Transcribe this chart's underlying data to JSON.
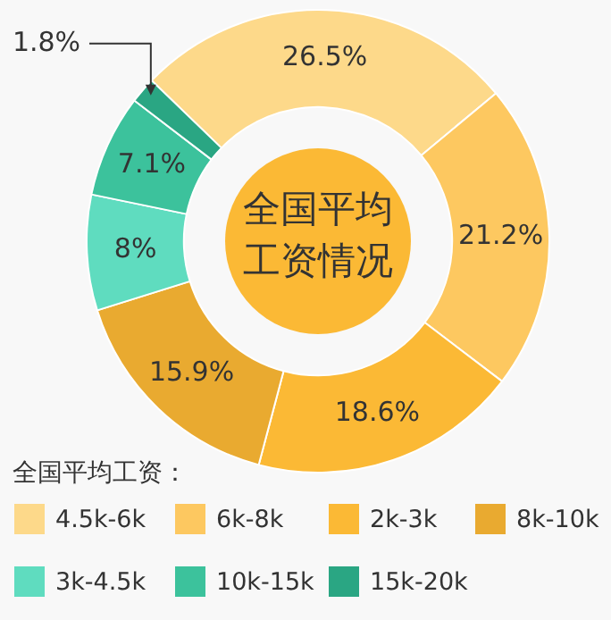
{
  "chart_data": {
    "type": "donut",
    "title": "全国平均工资情况",
    "legend_title": "全国平均工资：",
    "categories": [
      "4.5k-6k",
      "6k-8k",
      "2k-3k",
      "8k-10k",
      "3k-4.5k",
      "10k-15k",
      "15k-20k"
    ],
    "values": [
      26.5,
      21.2,
      18.6,
      15.9,
      8,
      7.1,
      1.8
    ],
    "value_labels": [
      "26.5%",
      "21.2%",
      "18.6%",
      "15.9%",
      "8%",
      "7.1%",
      "1.8%"
    ],
    "colors": [
      "#fdd98a",
      "#fdc860",
      "#fbb935",
      "#e9aa30",
      "#5fdcbf",
      "#3cc29c",
      "#2aa683"
    ],
    "legend": "bottom"
  }
}
